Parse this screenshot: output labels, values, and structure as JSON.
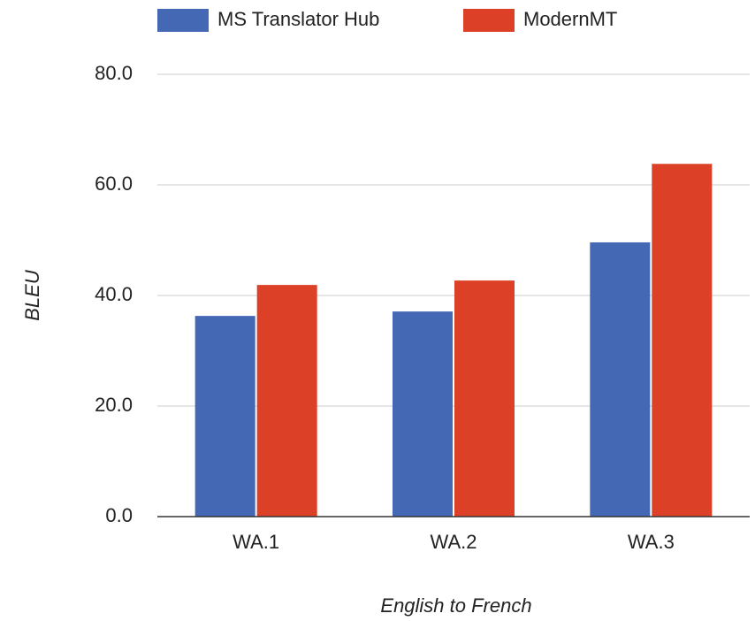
{
  "chart_data": {
    "type": "bar",
    "categories": [
      "WA.1",
      "WA.2",
      "WA.3"
    ],
    "series": [
      {
        "name": "MS Translator Hub",
        "color": "#4568b5",
        "values": [
          36.3,
          37.1,
          49.6
        ]
      },
      {
        "name": "ModernMT",
        "color": "#dc4127",
        "values": [
          41.9,
          42.7,
          63.8
        ]
      }
    ],
    "ylim": [
      0,
      80
    ],
    "yticks": [
      {
        "value": 0,
        "label": "0.0"
      },
      {
        "value": 20,
        "label": "20.0"
      },
      {
        "value": 40,
        "label": "40.0"
      },
      {
        "value": 60,
        "label": "60.0"
      },
      {
        "value": 80,
        "label": "80.0"
      }
    ],
    "y_label": "BLEU",
    "x_label": "English to French",
    "grid": true,
    "legend": "top"
  }
}
